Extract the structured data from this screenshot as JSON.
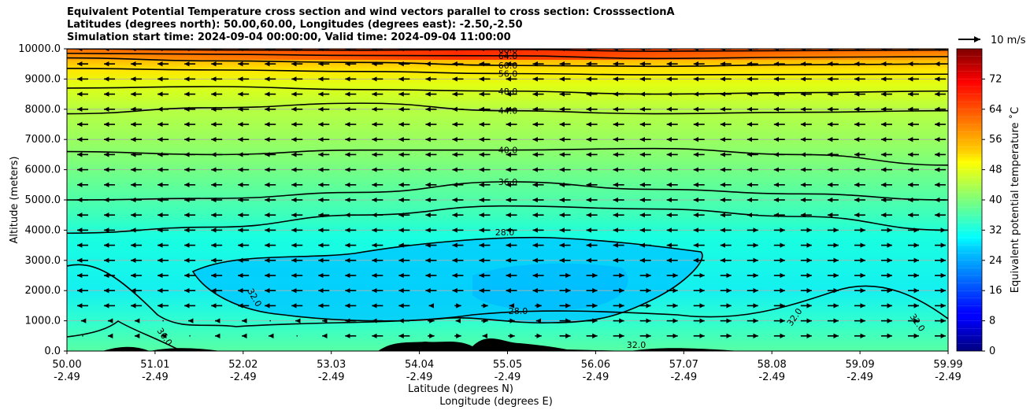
{
  "chart_data": {
    "type": "heatmap",
    "title_lines": [
      "Equivalent Potential Temperature cross section and wind vectors parallel to cross section: CrosssectionA",
      "Latitudes (degrees north): 50.00,60.00, Longitudes (degrees east): -2.50,-2.50",
      "Simulation start time: 2024-09-04 00:00:00, Valid time: 2024-09-04 11:00:00"
    ],
    "ylabel": "Altitude (meters)",
    "xlabel_lines": [
      "Latitude (degrees N)",
      "Longitude (degrees E)"
    ],
    "ylim": [
      0,
      10000
    ],
    "y_ticks": [
      "0.0",
      "1000.0",
      "2000.0",
      "3000.0",
      "4000.0",
      "5000.0",
      "6000.0",
      "7000.0",
      "8000.0",
      "9000.0",
      "10000.0"
    ],
    "x_ticks": [
      {
        "lat": "50.00",
        "lon": "-2.49"
      },
      {
        "lat": "51.01",
        "lon": "-2.49"
      },
      {
        "lat": "52.02",
        "lon": "-2.49"
      },
      {
        "lat": "53.03",
        "lon": "-2.49"
      },
      {
        "lat": "54.04",
        "lon": "-2.49"
      },
      {
        "lat": "55.05",
        "lon": "-2.49"
      },
      {
        "lat": "56.06",
        "lon": "-2.49"
      },
      {
        "lat": "57.07",
        "lon": "-2.49"
      },
      {
        "lat": "58.08",
        "lon": "-2.49"
      },
      {
        "lat": "59.09",
        "lon": "-2.49"
      },
      {
        "lat": "59.99",
        "lon": "-2.49"
      }
    ],
    "horizontal_gridlines": true,
    "colorbar": {
      "label": "Equivalent potential temperature $^\\circ$C",
      "label_display": "Equivalent potential temperature ˚C",
      "range": [
        0,
        80
      ],
      "ticks": [
        "0",
        "8",
        "16",
        "24",
        "32",
        "40",
        "48",
        "56",
        "64",
        "72"
      ],
      "colormap": "jet"
    },
    "wind_key": {
      "label": "10 m/s"
    },
    "contours": [
      {
        "value": 28.0,
        "label": "28.0"
      },
      {
        "value": 32.0,
        "label": "32.0"
      },
      {
        "value": 36.0,
        "label": "36.0"
      },
      {
        "value": 40.0,
        "label": "40.0"
      },
      {
        "value": 44.0,
        "label": "44.0"
      },
      {
        "value": 48.0,
        "label": "48.0"
      },
      {
        "value": 56.0,
        "label": "56.0"
      },
      {
        "value": 60.0,
        "label": "60.0"
      },
      {
        "value": 64.0,
        "label": "64.0"
      },
      {
        "value": 68.0,
        "label": "68.0"
      }
    ],
    "wind_summary": "winds mostly easterly (pointing left) aloft and westerly (pointing right) in the lower-right region"
  }
}
